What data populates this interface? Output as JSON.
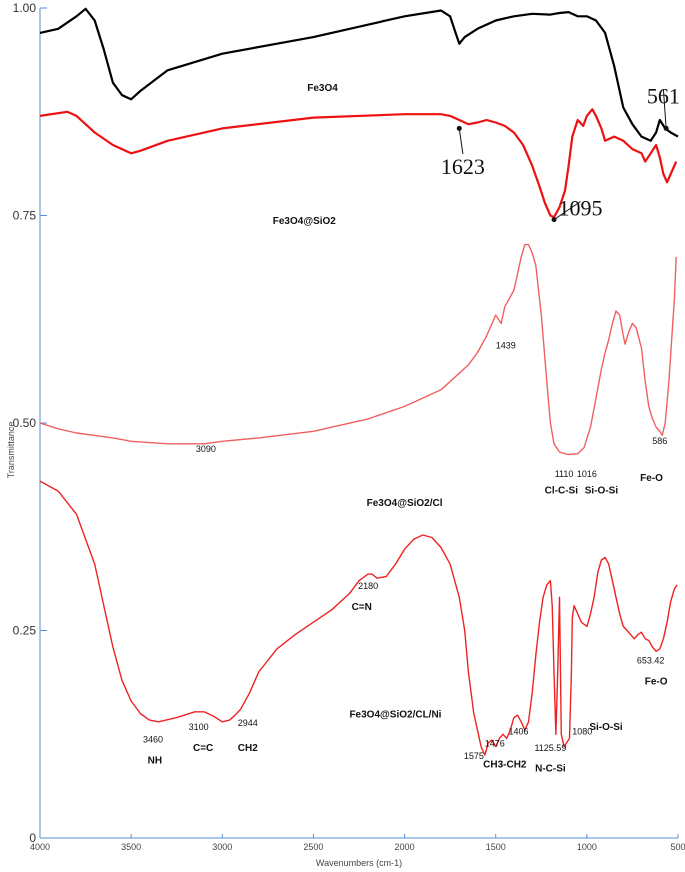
{
  "chart_data": {
    "type": "line",
    "xlabel": "Wavenumbers (cm-1)",
    "ylabel": "Transmittance",
    "xlim": [
      4000,
      500
    ],
    "ylim": [
      0,
      1.0
    ],
    "x_ticks": [
      "4000",
      "3500",
      "3000",
      "2500",
      "2000",
      "1500",
      "1000",
      "500"
    ],
    "y_ticks": [
      "0",
      "0.25",
      "0.50",
      "0.75",
      "1.00"
    ],
    "colors": {
      "black": "#000000",
      "red": "#ee1111",
      "pink": "#f06060",
      "red2": "#ee2222",
      "axis": "#5b8fd8"
    },
    "series": [
      {
        "name": "Fe3O4",
        "color": "black",
        "points": [
          [
            4000,
            0.97
          ],
          [
            3900,
            0.975
          ],
          [
            3800,
            0.99
          ],
          [
            3750,
            0.999
          ],
          [
            3700,
            0.985
          ],
          [
            3650,
            0.95
          ],
          [
            3600,
            0.91
          ],
          [
            3550,
            0.895
          ],
          [
            3500,
            0.89
          ],
          [
            3450,
            0.9
          ],
          [
            3300,
            0.925
          ],
          [
            3000,
            0.945
          ],
          [
            2500,
            0.965
          ],
          [
            2000,
            0.99
          ],
          [
            1800,
            0.997
          ],
          [
            1750,
            0.99
          ],
          [
            1720,
            0.97
          ],
          [
            1700,
            0.957
          ],
          [
            1670,
            0.965
          ],
          [
            1600,
            0.975
          ],
          [
            1500,
            0.985
          ],
          [
            1400,
            0.99
          ],
          [
            1300,
            0.993
          ],
          [
            1200,
            0.992
          ],
          [
            1150,
            0.994
          ],
          [
            1100,
            0.995
          ],
          [
            1050,
            0.99
          ],
          [
            1000,
            0.99
          ],
          [
            950,
            0.985
          ],
          [
            900,
            0.97
          ],
          [
            850,
            0.93
          ],
          [
            800,
            0.88
          ],
          [
            750,
            0.86
          ],
          [
            700,
            0.845
          ],
          [
            650,
            0.84
          ],
          [
            620,
            0.85
          ],
          [
            600,
            0.865
          ],
          [
            570,
            0.855
          ],
          [
            540,
            0.85
          ],
          [
            500,
            0.845
          ]
        ]
      },
      {
        "name": "Fe3O4@SiO2",
        "color": "red",
        "points": [
          [
            4000,
            0.87
          ],
          [
            3850,
            0.875
          ],
          [
            3800,
            0.87
          ],
          [
            3750,
            0.86
          ],
          [
            3700,
            0.85
          ],
          [
            3600,
            0.835
          ],
          [
            3500,
            0.825
          ],
          [
            3450,
            0.828
          ],
          [
            3300,
            0.84
          ],
          [
            3000,
            0.855
          ],
          [
            2500,
            0.868
          ],
          [
            2000,
            0.872
          ],
          [
            1800,
            0.872
          ],
          [
            1750,
            0.87
          ],
          [
            1700,
            0.865
          ],
          [
            1650,
            0.86
          ],
          [
            1600,
            0.862
          ],
          [
            1550,
            0.865
          ],
          [
            1500,
            0.862
          ],
          [
            1450,
            0.858
          ],
          [
            1400,
            0.85
          ],
          [
            1350,
            0.835
          ],
          [
            1300,
            0.81
          ],
          [
            1260,
            0.785
          ],
          [
            1230,
            0.765
          ],
          [
            1200,
            0.75
          ],
          [
            1180,
            0.748
          ],
          [
            1150,
            0.76
          ],
          [
            1120,
            0.78
          ],
          [
            1100,
            0.81
          ],
          [
            1080,
            0.845
          ],
          [
            1050,
            0.865
          ],
          [
            1020,
            0.858
          ],
          [
            1000,
            0.87
          ],
          [
            970,
            0.878
          ],
          [
            950,
            0.87
          ],
          [
            920,
            0.855
          ],
          [
            900,
            0.84
          ],
          [
            850,
            0.845
          ],
          [
            800,
            0.84
          ],
          [
            750,
            0.83
          ],
          [
            700,
            0.825
          ],
          [
            680,
            0.815
          ],
          [
            650,
            0.825
          ],
          [
            620,
            0.835
          ],
          [
            600,
            0.82
          ],
          [
            580,
            0.8
          ],
          [
            560,
            0.79
          ],
          [
            540,
            0.8
          ],
          [
            510,
            0.815
          ]
        ]
      },
      {
        "name": "Fe3O4@SiO2/Cl",
        "color": "pink",
        "points": [
          [
            4000,
            0.5
          ],
          [
            3900,
            0.493
          ],
          [
            3800,
            0.488
          ],
          [
            3700,
            0.485
          ],
          [
            3600,
            0.482
          ],
          [
            3500,
            0.478
          ],
          [
            3300,
            0.475
          ],
          [
            3100,
            0.475
          ],
          [
            3000,
            0.478
          ],
          [
            2800,
            0.482
          ],
          [
            2500,
            0.49
          ],
          [
            2200,
            0.505
          ],
          [
            2000,
            0.52
          ],
          [
            1800,
            0.54
          ],
          [
            1700,
            0.56
          ],
          [
            1650,
            0.57
          ],
          [
            1600,
            0.585
          ],
          [
            1550,
            0.605
          ],
          [
            1500,
            0.63
          ],
          [
            1470,
            0.62
          ],
          [
            1450,
            0.64
          ],
          [
            1400,
            0.66
          ],
          [
            1380,
            0.68
          ],
          [
            1360,
            0.7
          ],
          [
            1340,
            0.715
          ],
          [
            1320,
            0.715
          ],
          [
            1300,
            0.705
          ],
          [
            1280,
            0.69
          ],
          [
            1250,
            0.63
          ],
          [
            1220,
            0.55
          ],
          [
            1200,
            0.5
          ],
          [
            1180,
            0.475
          ],
          [
            1150,
            0.465
          ],
          [
            1120,
            0.463
          ],
          [
            1100,
            0.462
          ],
          [
            1050,
            0.463
          ],
          [
            1016,
            0.47
          ],
          [
            980,
            0.495
          ],
          [
            950,
            0.53
          ],
          [
            920,
            0.565
          ],
          [
            900,
            0.585
          ],
          [
            880,
            0.6
          ],
          [
            860,
            0.62
          ],
          [
            840,
            0.635
          ],
          [
            820,
            0.63
          ],
          [
            800,
            0.605
          ],
          [
            790,
            0.595
          ],
          [
            770,
            0.61
          ],
          [
            750,
            0.62
          ],
          [
            730,
            0.615
          ],
          [
            700,
            0.59
          ],
          [
            680,
            0.55
          ],
          [
            660,
            0.52
          ],
          [
            640,
            0.505
          ],
          [
            620,
            0.495
          ],
          [
            600,
            0.49
          ],
          [
            586,
            0.485
          ],
          [
            570,
            0.5
          ],
          [
            550,
            0.55
          ],
          [
            520,
            0.65
          ],
          [
            510,
            0.7
          ]
        ]
      },
      {
        "name": "Fe3O4@SiO2/CL/Ni",
        "color": "red2",
        "points": [
          [
            4000,
            0.43
          ],
          [
            3900,
            0.418
          ],
          [
            3800,
            0.39
          ],
          [
            3700,
            0.33
          ],
          [
            3650,
            0.28
          ],
          [
            3600,
            0.23
          ],
          [
            3550,
            0.19
          ],
          [
            3500,
            0.165
          ],
          [
            3450,
            0.15
          ],
          [
            3400,
            0.142
          ],
          [
            3350,
            0.14
          ],
          [
            3250,
            0.145
          ],
          [
            3150,
            0.152
          ],
          [
            3100,
            0.152
          ],
          [
            3050,
            0.147
          ],
          [
            3000,
            0.14
          ],
          [
            2960,
            0.142
          ],
          [
            2930,
            0.148
          ],
          [
            2900,
            0.155
          ],
          [
            2850,
            0.175
          ],
          [
            2800,
            0.2
          ],
          [
            2700,
            0.228
          ],
          [
            2600,
            0.245
          ],
          [
            2500,
            0.26
          ],
          [
            2400,
            0.275
          ],
          [
            2300,
            0.295
          ],
          [
            2250,
            0.31
          ],
          [
            2200,
            0.318
          ],
          [
            2180,
            0.318
          ],
          [
            2150,
            0.313
          ],
          [
            2100,
            0.315
          ],
          [
            2050,
            0.33
          ],
          [
            2000,
            0.348
          ],
          [
            1950,
            0.36
          ],
          [
            1900,
            0.365
          ],
          [
            1850,
            0.362
          ],
          [
            1800,
            0.35
          ],
          [
            1750,
            0.33
          ],
          [
            1700,
            0.29
          ],
          [
            1670,
            0.25
          ],
          [
            1650,
            0.2
          ],
          [
            1620,
            0.15
          ],
          [
            1600,
            0.13
          ],
          [
            1580,
            0.11
          ],
          [
            1560,
            0.1
          ],
          [
            1540,
            0.115
          ],
          [
            1520,
            0.118
          ],
          [
            1500,
            0.11
          ],
          [
            1480,
            0.12
          ],
          [
            1460,
            0.125
          ],
          [
            1440,
            0.12
          ],
          [
            1420,
            0.13
          ],
          [
            1400,
            0.145
          ],
          [
            1380,
            0.148
          ],
          [
            1360,
            0.14
          ],
          [
            1340,
            0.13
          ],
          [
            1320,
            0.14
          ],
          [
            1300,
            0.175
          ],
          [
            1280,
            0.22
          ],
          [
            1260,
            0.26
          ],
          [
            1240,
            0.29
          ],
          [
            1220,
            0.305
          ],
          [
            1200,
            0.31
          ],
          [
            1190,
            0.28
          ],
          [
            1180,
            0.2
          ],
          [
            1170,
            0.125
          ],
          [
            1160,
            0.2
          ],
          [
            1150,
            0.29
          ],
          [
            1140,
            0.125
          ],
          [
            1125,
            0.11
          ],
          [
            1110,
            0.115
          ],
          [
            1095,
            0.12
          ],
          [
            1085,
            0.2
          ],
          [
            1080,
            0.265
          ],
          [
            1070,
            0.28
          ],
          [
            1060,
            0.275
          ],
          [
            1050,
            0.27
          ],
          [
            1030,
            0.26
          ],
          [
            1000,
            0.255
          ],
          [
            980,
            0.27
          ],
          [
            960,
            0.29
          ],
          [
            940,
            0.32
          ],
          [
            920,
            0.335
          ],
          [
            900,
            0.338
          ],
          [
            880,
            0.33
          ],
          [
            860,
            0.31
          ],
          [
            840,
            0.29
          ],
          [
            820,
            0.27
          ],
          [
            800,
            0.255
          ],
          [
            780,
            0.25
          ],
          [
            760,
            0.245
          ],
          [
            740,
            0.24
          ],
          [
            720,
            0.245
          ],
          [
            700,
            0.248
          ],
          [
            680,
            0.24
          ],
          [
            660,
            0.238
          ],
          [
            640,
            0.23
          ],
          [
            620,
            0.225
          ],
          [
            600,
            0.228
          ],
          [
            580,
            0.24
          ],
          [
            560,
            0.26
          ],
          [
            540,
            0.285
          ],
          [
            520,
            0.3
          ],
          [
            505,
            0.305
          ]
        ]
      }
    ],
    "series_labels": [
      {
        "text": "Fe3O4",
        "x": 2450,
        "y": 0.9
      },
      {
        "text": "Fe3O4@SiO2",
        "x": 2550,
        "y": 0.74
      },
      {
        "text": "Fe3O4@SiO2/Cl",
        "x": 2000,
        "y": 0.4
      },
      {
        "text": "Fe3O4@SiO2/CL/Ni",
        "x": 2050,
        "y": 0.145
      }
    ],
    "annotations": [
      {
        "text": "561",
        "x": 580,
        "y": 0.885,
        "style": "big",
        "arrow_to": [
          565,
          0.855
        ]
      },
      {
        "text": "1623",
        "x": 1680,
        "y": 0.8,
        "style": "big",
        "arrow_to": [
          1700,
          0.855
        ]
      },
      {
        "text": "1095",
        "x": 1035,
        "y": 0.75,
        "style": "big",
        "arrow_to": [
          1180,
          0.745
        ]
      },
      {
        "text": "1439",
        "x": 1445,
        "y": 0.59,
        "style": "small"
      },
      {
        "text": "3090",
        "x": 3090,
        "y": 0.465,
        "style": "small"
      },
      {
        "text": "1110",
        "x": 1125,
        "y": 0.435,
        "style": "small"
      },
      {
        "text": "1016",
        "x": 1000,
        "y": 0.435,
        "style": "small"
      },
      {
        "text": "586",
        "x": 600,
        "y": 0.475,
        "style": "small"
      },
      {
        "text": "Cl-C-Si",
        "x": 1140,
        "y": 0.415,
        "style": "group"
      },
      {
        "text": "Si-O-Si",
        "x": 920,
        "y": 0.415,
        "style": "group"
      },
      {
        "text": "Fe-O",
        "x": 645,
        "y": 0.43,
        "style": "group"
      },
      {
        "text": "2180",
        "x": 2200,
        "y": 0.3,
        "style": "tiny"
      },
      {
        "text": "C=N",
        "x": 2235,
        "y": 0.275,
        "style": "group"
      },
      {
        "text": "653.42",
        "x": 650,
        "y": 0.21,
        "style": "small"
      },
      {
        "text": "Fe-O",
        "x": 620,
        "y": 0.185,
        "style": "group"
      },
      {
        "text": "3460",
        "x": 3380,
        "y": 0.115,
        "style": "small"
      },
      {
        "text": "NH",
        "x": 3370,
        "y": 0.09,
        "style": "group"
      },
      {
        "text": "3100",
        "x": 3130,
        "y": 0.13,
        "style": "small"
      },
      {
        "text": "C=C",
        "x": 3105,
        "y": 0.105,
        "style": "group"
      },
      {
        "text": "2944",
        "x": 2860,
        "y": 0.135,
        "style": "small"
      },
      {
        "text": "CH2",
        "x": 2860,
        "y": 0.105,
        "style": "group"
      },
      {
        "text": "1575",
        "x": 1620,
        "y": 0.095,
        "style": "small"
      },
      {
        "text": "1476",
        "x": 1505,
        "y": 0.11,
        "style": "small"
      },
      {
        "text": "1406",
        "x": 1375,
        "y": 0.125,
        "style": "small"
      },
      {
        "text": "CH3-CH2",
        "x": 1450,
        "y": 0.085,
        "style": "group"
      },
      {
        "text": "1125.59",
        "x": 1200,
        "y": 0.105,
        "style": "small"
      },
      {
        "text": "N-C-Si",
        "x": 1200,
        "y": 0.08,
        "style": "group"
      },
      {
        "text": "1080",
        "x": 1025,
        "y": 0.125,
        "style": "small"
      },
      {
        "text": "Si-O-Si",
        "x": 895,
        "y": 0.13,
        "style": "group"
      }
    ]
  }
}
